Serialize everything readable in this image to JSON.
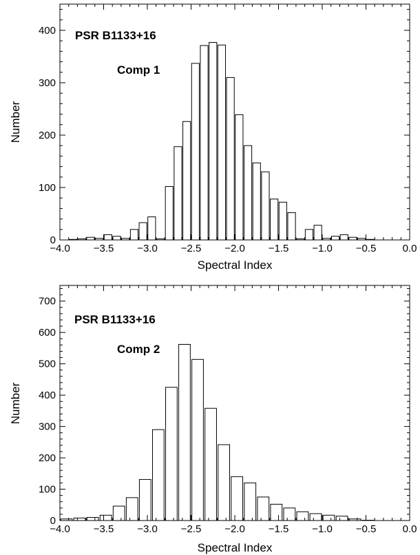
{
  "chart_data": [
    {
      "type": "bar",
      "annotations": [
        "PSR B1133+16",
        "Comp 1"
      ],
      "xlabel": "Spectral Index",
      "ylabel": "Number",
      "xlim": [
        -4.0,
        0.0
      ],
      "ylim": [
        0,
        450
      ],
      "xticks": [
        -4.0,
        -3.5,
        -3.0,
        -2.5,
        -2.0,
        -1.5,
        -1.0,
        -0.5,
        0.0
      ],
      "xtick_labels": [
        "−4.0",
        "−3.5",
        "−3.0",
        "−2.5",
        "−2.0",
        "−1.5",
        "−1.0",
        "−0.5",
        "0.0"
      ],
      "yticks": [
        0,
        100,
        200,
        300,
        400
      ],
      "bin_width": 0.1,
      "bin_centers": [
        -3.85,
        -3.75,
        -3.65,
        -3.55,
        -3.45,
        -3.35,
        -3.25,
        -3.15,
        -3.05,
        -2.95,
        -2.85,
        -2.75,
        -2.65,
        -2.55,
        -2.45,
        -2.35,
        -2.25,
        -2.15,
        -2.05,
        -1.95,
        -1.85,
        -1.75,
        -1.65,
        -1.55,
        -1.45,
        -1.35,
        -1.25,
        -1.15,
        -1.05,
        -0.95,
        -0.85,
        -0.75,
        -0.65,
        -0.55,
        -0.45,
        -0.35,
        -0.25,
        -0.15,
        -0.05
      ],
      "values": [
        1,
        2,
        5,
        3,
        10,
        7,
        3,
        20,
        33,
        44,
        2,
        102,
        178,
        226,
        337,
        371,
        377,
        372,
        310,
        239,
        180,
        147,
        130,
        78,
        72,
        52,
        2,
        20,
        28,
        3,
        7,
        10,
        5,
        3,
        1,
        0,
        0,
        0,
        0
      ]
    },
    {
      "type": "bar",
      "annotations": [
        "PSR B1133+16",
        "Comp 2"
      ],
      "xlabel": "Spectral Index",
      "ylabel": "Number",
      "xlim": [
        -4.0,
        0.0
      ],
      "ylim": [
        0,
        750
      ],
      "xticks": [
        -4.0,
        -3.5,
        -3.0,
        -2.5,
        -2.0,
        -1.5,
        -1.0,
        -0.5,
        0.0
      ],
      "xtick_labels": [
        "−4.0",
        "−3.5",
        "−3.0",
        "−2.5",
        "−2.0",
        "−1.5",
        "−1.0",
        "−0.5",
        "0.0"
      ],
      "yticks": [
        0,
        100,
        200,
        300,
        400,
        500,
        600,
        700
      ],
      "bin_width": 0.15,
      "bin_centers": [
        -3.925,
        -3.775,
        -3.625,
        -3.475,
        -3.325,
        -3.175,
        -3.025,
        -2.875,
        -2.725,
        -2.575,
        -2.425,
        -2.275,
        -2.125,
        -1.975,
        -1.825,
        -1.675,
        -1.525,
        -1.375,
        -1.225,
        -1.075,
        -0.925,
        -0.775,
        -0.625,
        -0.475,
        -0.325,
        -0.175,
        -0.025
      ],
      "values": [
        5,
        8,
        10,
        17,
        46,
        73,
        131,
        290,
        425,
        562,
        514,
        358,
        242,
        140,
        120,
        75,
        52,
        40,
        28,
        22,
        17,
        14,
        5,
        1,
        0,
        0,
        0
      ]
    }
  ]
}
